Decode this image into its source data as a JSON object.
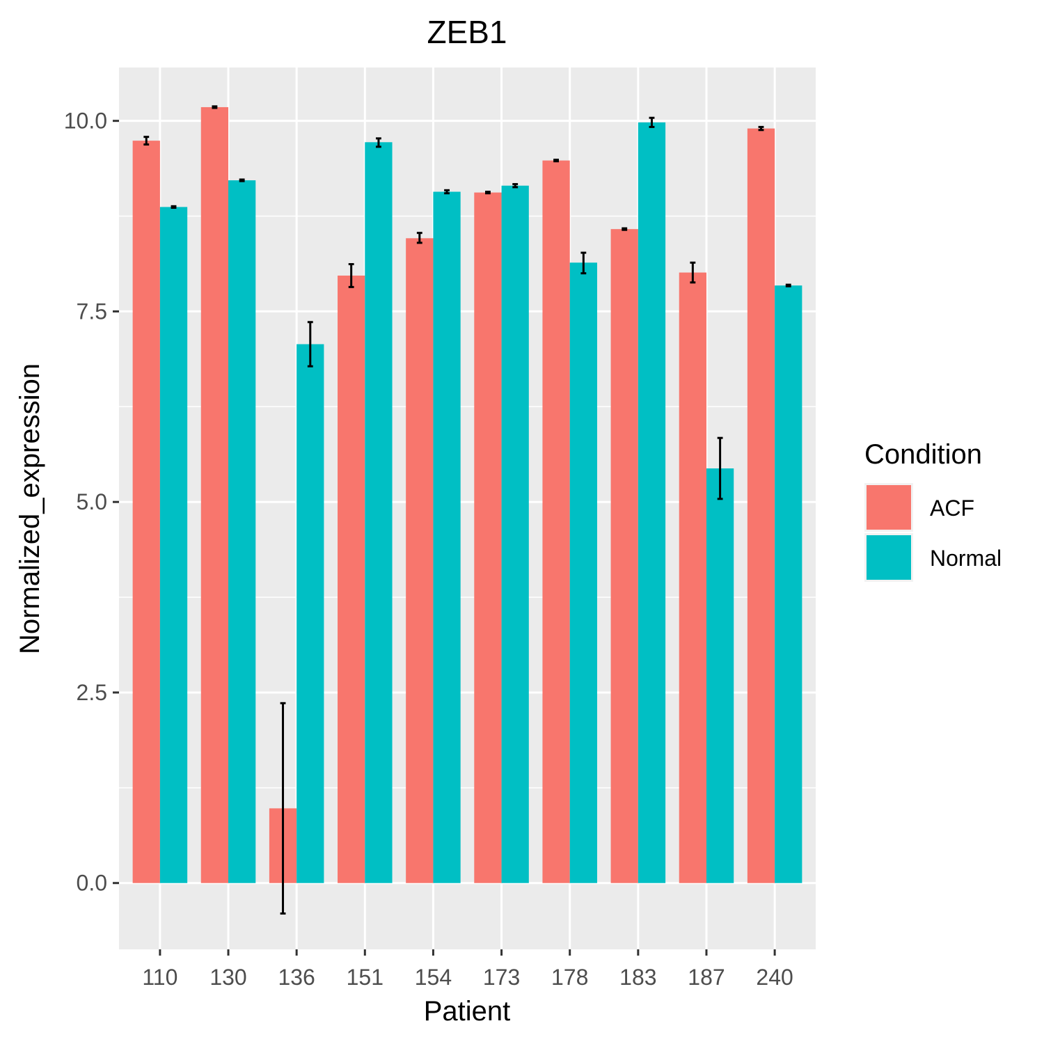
{
  "chart_data": {
    "type": "bar",
    "title": "ZEB1",
    "xlabel": "Patient",
    "ylabel": "Normalized_expression",
    "categories": [
      "110",
      "130",
      "136",
      "151",
      "154",
      "173",
      "178",
      "183",
      "187",
      "240"
    ],
    "series": [
      {
        "name": "ACF",
        "color": "#F8766D",
        "values": [
          9.74,
          10.18,
          0.98,
          7.97,
          8.46,
          9.06,
          9.48,
          8.58,
          8.01,
          9.9
        ],
        "error_low": [
          9.69,
          10.17,
          -0.4,
          7.82,
          8.4,
          9.05,
          9.47,
          8.57,
          7.88,
          9.88
        ],
        "error_high": [
          9.79,
          10.19,
          2.36,
          8.12,
          8.53,
          9.07,
          9.49,
          8.59,
          8.14,
          9.92
        ]
      },
      {
        "name": "Normal",
        "color": "#00BFC4",
        "values": [
          8.87,
          9.22,
          7.07,
          9.72,
          9.07,
          9.15,
          8.14,
          9.98,
          5.44,
          7.84
        ],
        "error_low": [
          8.86,
          9.21,
          6.78,
          9.66,
          9.05,
          9.13,
          8.0,
          9.92,
          5.04,
          7.83
        ],
        "error_high": [
          8.88,
          9.23,
          7.36,
          9.77,
          9.09,
          9.17,
          8.27,
          10.04,
          5.84,
          7.85
        ]
      }
    ],
    "ylim": [
      -0.87,
      10.7
    ],
    "yticks": [
      0.0,
      2.5,
      5.0,
      7.5,
      10.0
    ],
    "ytick_labels": [
      "0.0",
      "2.5",
      "5.0",
      "7.5",
      "10.0"
    ],
    "grid": true,
    "legend": {
      "title": "Condition",
      "placement": "right",
      "entries": [
        "ACF",
        "Normal"
      ]
    }
  }
}
